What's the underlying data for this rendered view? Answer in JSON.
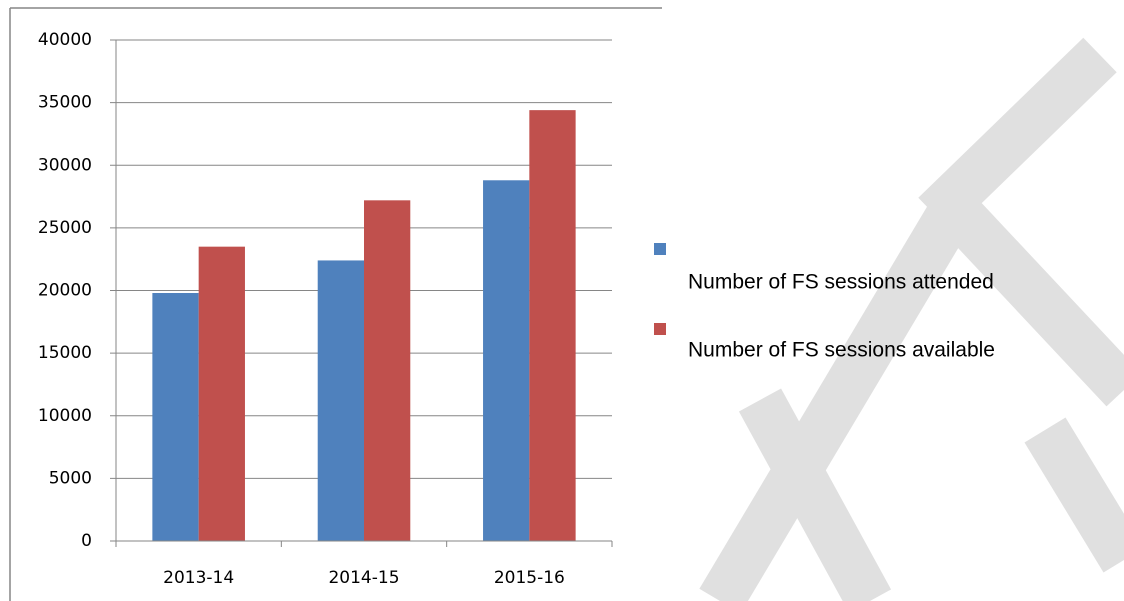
{
  "chart_data": {
    "type": "bar",
    "categories": [
      "2013-14",
      "2014-15",
      "2015-16"
    ],
    "series": [
      {
        "name": "Number of FS sessions attended",
        "color": "#4f81bd",
        "values": [
          19800,
          22400,
          28800
        ]
      },
      {
        "name": "Number of FS sessions available",
        "color": "#c0504d",
        "values": [
          23500,
          27200,
          34400
        ]
      }
    ],
    "ylim": [
      0,
      40000
    ],
    "yticks": [
      0,
      5000,
      10000,
      15000,
      20000,
      25000,
      30000,
      35000,
      40000
    ],
    "grid": true,
    "legend": "right"
  }
}
